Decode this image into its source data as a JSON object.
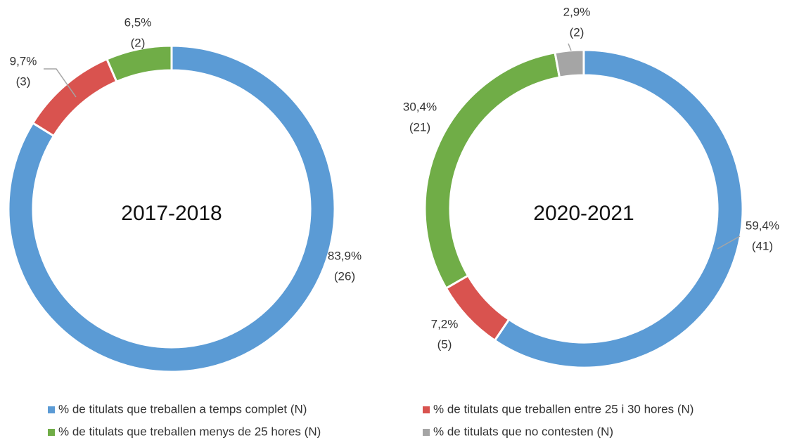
{
  "legend": [
    {
      "name": "% de titulats que treballen a temps complet (N)",
      "color": "#5b9bd5"
    },
    {
      "name": "% de titulats que treballen entre 25 i 30 hores (N)",
      "color": "#d9534f"
    },
    {
      "name": "% de titulats que treballen menys de 25 hores (N)",
      "color": "#70ad47"
    },
    {
      "name": "% de titulats que no contesten (N)",
      "color": "#a5a5a5"
    }
  ],
  "chart_data": [
    {
      "type": "donut",
      "title": "2017-2018",
      "values": [
        83.9,
        9.7,
        6.5
      ],
      "value_labels": [
        "83,9%",
        "9,7%",
        "6,5%"
      ],
      "counts": [
        26,
        3,
        2
      ],
      "count_labels": [
        "(26)",
        "(3)",
        "(2)"
      ]
    },
    {
      "type": "donut",
      "title": "2020-2021",
      "values": [
        59.4,
        7.2,
        30.4,
        2.9
      ],
      "value_labels": [
        "59,4%",
        "7,2%",
        "30,4%",
        "2,9%"
      ],
      "counts": [
        41,
        5,
        21,
        2
      ],
      "count_labels": [
        "(41)",
        "(5)",
        "(21)",
        "(2)"
      ]
    }
  ]
}
